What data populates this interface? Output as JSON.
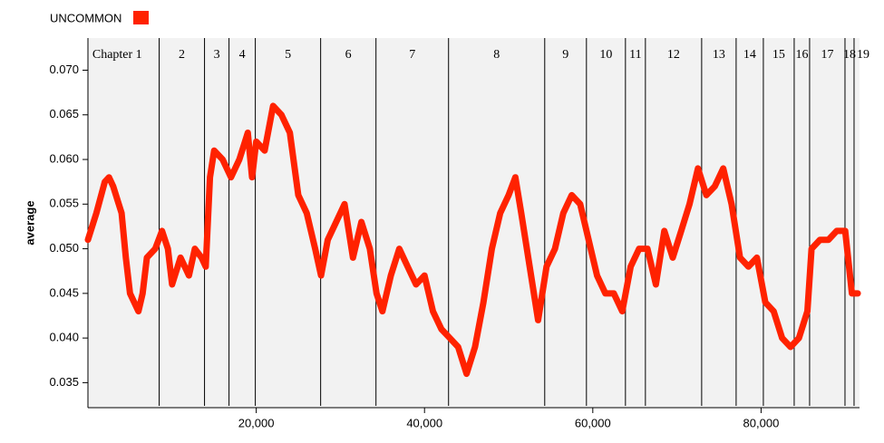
{
  "chart_data": {
    "type": "line",
    "y_label": "average",
    "legend_position": "top-left",
    "x": [
      0,
      1000,
      2000,
      2500,
      3000,
      4000,
      4500,
      5000,
      6000,
      6500,
      7000,
      8000,
      8800,
      9500,
      10000,
      11000,
      12000,
      12700,
      13500,
      14000,
      14500,
      15000,
      16000,
      17000,
      18000,
      19000,
      19500,
      20000,
      21000,
      22000,
      23000,
      24000,
      25000,
      26000,
      27000,
      27700,
      28500,
      29500,
      30500,
      31500,
      32500,
      33500,
      34300,
      35000,
      36000,
      37000,
      38000,
      39000,
      40000,
      41000,
      42000,
      43000,
      44000,
      45000,
      46000,
      47000,
      48000,
      49000,
      50000,
      50800,
      51500,
      52500,
      53500,
      54500,
      55500,
      56500,
      57500,
      58500,
      59500,
      60500,
      61500,
      62500,
      63500,
      64500,
      65500,
      66500,
      67500,
      68500,
      69500,
      70500,
      71500,
      72500,
      73500,
      74500,
      75500,
      76500,
      77500,
      78500,
      79500,
      80500,
      81500,
      82500,
      83500,
      84500,
      85500,
      86000,
      87000,
      88000,
      89000,
      90000,
      90800,
      91500
    ],
    "series": [
      {
        "name": "UNCOMMON",
        "color": "#ff2200",
        "values": [
          0.051,
          0.054,
          0.0575,
          0.058,
          0.057,
          0.054,
          0.049,
          0.045,
          0.043,
          0.045,
          0.049,
          0.05,
          0.052,
          0.05,
          0.046,
          0.049,
          0.047,
          0.05,
          0.049,
          0.048,
          0.058,
          0.061,
          0.06,
          0.058,
          0.06,
          0.063,
          0.058,
          0.062,
          0.061,
          0.066,
          0.065,
          0.063,
          0.056,
          0.054,
          0.05,
          0.047,
          0.051,
          0.053,
          0.055,
          0.049,
          0.053,
          0.05,
          0.045,
          0.043,
          0.047,
          0.05,
          0.048,
          0.046,
          0.047,
          0.043,
          0.041,
          0.04,
          0.039,
          0.036,
          0.039,
          0.044,
          0.05,
          0.054,
          0.056,
          0.058,
          0.054,
          0.048,
          0.042,
          0.048,
          0.05,
          0.054,
          0.056,
          0.055,
          0.051,
          0.047,
          0.045,
          0.045,
          0.043,
          0.048,
          0.05,
          0.05,
          0.046,
          0.052,
          0.049,
          0.052,
          0.055,
          0.059,
          0.056,
          0.057,
          0.059,
          0.055,
          0.049,
          0.048,
          0.049,
          0.044,
          0.043,
          0.04,
          0.039,
          0.04,
          0.043,
          0.05,
          0.051,
          0.051,
          0.052,
          0.052,
          0.045,
          0.045
        ]
      }
    ],
    "xlim": [
      0,
      91700
    ],
    "ylim": [
      0.0322,
      0.0736
    ],
    "xticks": [
      {
        "value": 20000,
        "label": "20,000"
      },
      {
        "value": 40000,
        "label": "40,000"
      },
      {
        "value": 60000,
        "label": "60,000"
      },
      {
        "value": 80000,
        "label": "80,000"
      }
    ],
    "yticks": [
      0.035,
      {
        "value": 0.04,
        "label": "0.040"
      },
      0.045,
      {
        "value": 0.05,
        "label": "0.050"
      },
      0.055,
      {
        "value": 0.06,
        "label": "0.060"
      },
      0.065,
      {
        "value": 0.07,
        "label": "0.070"
      }
    ],
    "chapter_boundaries": [
      8464,
      13854,
      16765,
      19892,
      27655,
      34232,
      42857,
      54286,
      59245,
      63881,
      66253,
      72938,
      77035,
      80270,
      83935,
      85768,
      89973,
      91051
    ],
    "chapter_labels": [
      "Chapter 1",
      "2",
      "3",
      "4",
      "5",
      "6",
      "7",
      "8",
      "9",
      "10",
      "11",
      "12",
      "13",
      "14",
      "15",
      "16",
      "17",
      "18",
      "19"
    ]
  }
}
